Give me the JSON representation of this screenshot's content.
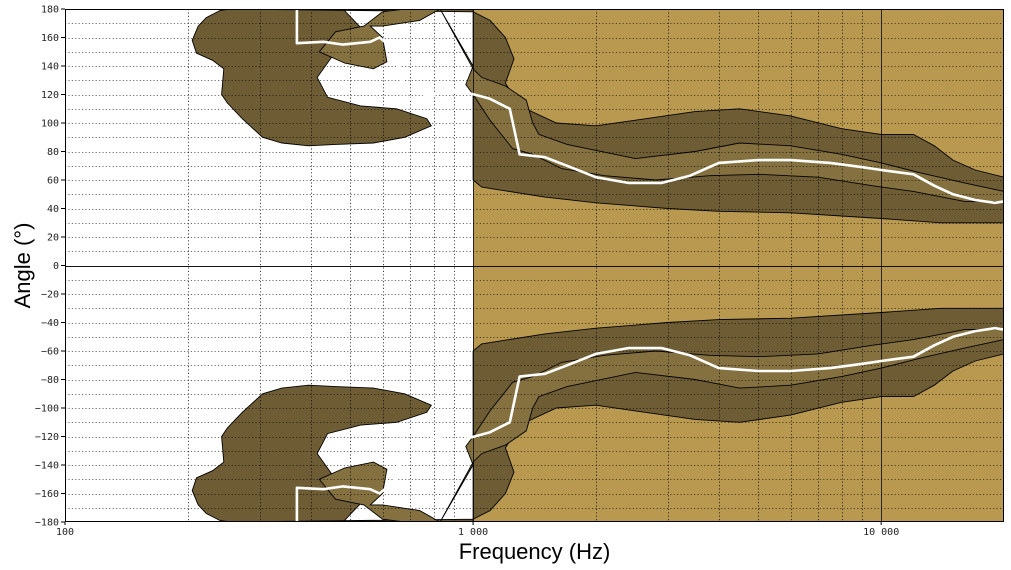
{
  "chart_data": {
    "type": "area",
    "title": "",
    "xlabel": "Frequency (Hz)",
    "ylabel": "Angle (°)",
    "xscale": "log",
    "xlim": [
      100,
      20000
    ],
    "ylim": [
      -180,
      180
    ],
    "x_tick_values": [
      100,
      1000,
      10000
    ],
    "x_tick_labels": [
      "100",
      "1 000",
      "10 000"
    ],
    "y_tick_values": [
      180,
      160,
      140,
      120,
      100,
      80,
      60,
      40,
      20,
      0,
      -20,
      -40,
      -60,
      -80,
      -100,
      -120,
      -140,
      -160,
      -180
    ],
    "y_tick_labels": [
      "180",
      "160",
      "140",
      "120",
      "100",
      "80",
      "60",
      "40",
      "20",
      "0",
      "−20",
      "−40",
      "−60",
      "−80",
      "−100",
      "−120",
      "−140",
      "−160",
      "−180"
    ],
    "grid": true,
    "colors": {
      "background": "#ffffff",
      "region_light": "#b8994f",
      "band_outer": "#6e5c34",
      "band_inner": "#857140",
      "median_line": "#ffffff",
      "outline": "#000000"
    },
    "series": [
      {
        "role": "light region",
        "points": [
          [
            1000,
            180
          ],
          [
            20000,
            180
          ],
          [
            20000,
            -180
          ],
          [
            1000,
            -180
          ]
        ]
      },
      {
        "role": "outer band",
        "points": [
          [
            255,
            180
          ],
          [
            480,
            180
          ],
          [
            530,
            167
          ],
          [
            520,
            158
          ],
          [
            460,
            150
          ],
          [
            415,
            132
          ],
          [
            440,
            118
          ],
          [
            530,
            112
          ],
          [
            650,
            110
          ],
          [
            770,
            103
          ],
          [
            790,
            98
          ],
          [
            680,
            90
          ],
          [
            570,
            86
          ],
          [
            460,
            85
          ],
          [
            395,
            84
          ],
          [
            340,
            86
          ],
          [
            305,
            90
          ],
          [
            272,
            103
          ],
          [
            250,
            114
          ],
          [
            242,
            120
          ],
          [
            245,
            138
          ],
          [
            230,
            144
          ],
          [
            210,
            149
          ],
          [
            205,
            158
          ],
          [
            212,
            168
          ],
          [
            222,
            174
          ],
          [
            240,
            179
          ],
          [
            255,
            180
          ],
          [
            1000,
            180
          ],
          [
            1000,
            60
          ],
          [
            1050,
            55
          ],
          [
            1500,
            48
          ],
          [
            2000,
            44
          ],
          [
            3000,
            40
          ],
          [
            4000,
            38
          ],
          [
            6000,
            37
          ],
          [
            10000,
            33
          ],
          [
            14000,
            30
          ],
          [
            20000,
            30
          ],
          [
            20000,
            62
          ],
          [
            17000,
            67
          ],
          [
            15000,
            74
          ],
          [
            13500,
            84
          ],
          [
            12000,
            92
          ],
          [
            10000,
            92
          ],
          [
            8000,
            96
          ],
          [
            6000,
            105
          ],
          [
            4500,
            110
          ],
          [
            3500,
            108
          ],
          [
            2500,
            102
          ],
          [
            2000,
            98
          ],
          [
            1600,
            100
          ],
          [
            1300,
            112
          ],
          [
            1200,
            128
          ],
          [
            1260,
            145
          ],
          [
            1200,
            160
          ],
          [
            1100,
            172
          ],
          [
            1000,
            178
          ]
        ],
        "mirror_negative": true
      },
      {
        "role": "inner band",
        "points": [
          [
            830,
            180
          ],
          [
            740,
            172
          ],
          [
            600,
            168
          ],
          [
            560,
            168
          ],
          [
            600,
            160
          ],
          [
            615,
            143
          ],
          [
            570,
            138
          ],
          [
            485,
            142
          ],
          [
            420,
            150
          ],
          [
            460,
            164
          ],
          [
            540,
            168
          ],
          [
            600,
            178
          ],
          [
            680,
            180
          ],
          [
            830,
            180
          ],
          [
            1000,
            140
          ],
          [
            960,
            127
          ],
          [
            1000,
            120
          ],
          [
            1100,
            102
          ],
          [
            1250,
            82
          ],
          [
            1400,
            78
          ],
          [
            1650,
            68
          ],
          [
            2100,
            63
          ],
          [
            2800,
            60
          ],
          [
            3800,
            63
          ],
          [
            5000,
            64
          ],
          [
            7000,
            62
          ],
          [
            9500,
            56
          ],
          [
            12000,
            52
          ],
          [
            16000,
            45
          ],
          [
            20000,
            45
          ],
          [
            20000,
            52
          ],
          [
            16000,
            58
          ],
          [
            12500,
            65
          ],
          [
            10000,
            72
          ],
          [
            8000,
            78
          ],
          [
            6000,
            84
          ],
          [
            4500,
            86
          ],
          [
            3500,
            80
          ],
          [
            2500,
            75
          ],
          [
            1700,
            85
          ],
          [
            1450,
            92
          ],
          [
            1400,
            100
          ],
          [
            1350,
            116
          ],
          [
            1200,
            126
          ],
          [
            1050,
            132
          ],
          [
            1000,
            138
          ]
        ],
        "mirror_negative": true
      },
      {
        "role": "median line",
        "points": [
          [
            370,
            180
          ],
          [
            370,
            156
          ],
          [
            430,
            157
          ],
          [
            480,
            155
          ],
          [
            560,
            157
          ],
          [
            590,
            160
          ],
          [
            650,
            150
          ],
          [
            680,
            116
          ],
          [
            750,
            118
          ],
          [
            850,
            122
          ],
          [
            950,
            122
          ],
          [
            1100,
            117
          ],
          [
            1230,
            110
          ],
          [
            1300,
            78
          ],
          [
            1500,
            76
          ],
          [
            1700,
            70
          ],
          [
            2000,
            62
          ],
          [
            2400,
            58
          ],
          [
            2900,
            58
          ],
          [
            3400,
            63
          ],
          [
            4000,
            72
          ],
          [
            5000,
            74
          ],
          [
            6000,
            74
          ],
          [
            7500,
            72
          ],
          [
            9000,
            69
          ],
          [
            10000,
            67
          ],
          [
            12000,
            64
          ],
          [
            13500,
            56
          ],
          [
            15000,
            50
          ],
          [
            17000,
            46
          ],
          [
            19000,
            44
          ],
          [
            20000,
            45
          ]
        ],
        "mirror_negative": true
      }
    ]
  }
}
